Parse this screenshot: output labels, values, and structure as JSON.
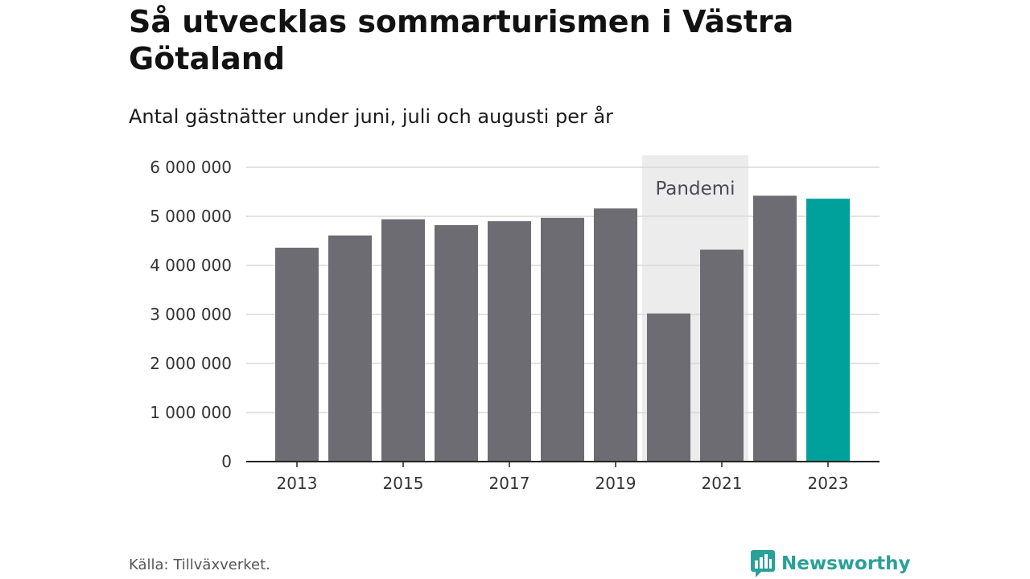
{
  "title": "Så utvecklas sommarturismen i Västra Götaland",
  "subtitle": "Antal gästnätter under juni, juli och augusti per år",
  "source": "Källa: Tillväxverket.",
  "brand": {
    "name": "Newsworthy",
    "icon": "newsworthy-logo-icon",
    "color": "#2aa198"
  },
  "colors": {
    "bar": "#6d6c72",
    "highlight": "#00a19a",
    "band": "#ececec",
    "grid": "#d9d9d9",
    "axis": "#222222"
  },
  "chart_data": {
    "type": "bar",
    "categories": [
      "2013",
      "2014",
      "2015",
      "2016",
      "2017",
      "2018",
      "2019",
      "2020",
      "2021",
      "2022",
      "2023"
    ],
    "values": [
      4360000,
      4610000,
      4940000,
      4820000,
      4900000,
      4970000,
      5160000,
      3020000,
      4320000,
      5420000,
      5360000
    ],
    "highlight_category": "2023",
    "ylim": [
      0,
      6000000
    ],
    "yticks": [
      0,
      1000000,
      2000000,
      3000000,
      4000000,
      5000000,
      6000000
    ],
    "ytick_labels": [
      "0",
      "1 000 000",
      "2 000 000",
      "3 000 000",
      "4 000 000",
      "5 000 000",
      "6 000 000"
    ],
    "xtick_labels": [
      "2013",
      "2015",
      "2017",
      "2019",
      "2021",
      "2023"
    ],
    "xlabel": "",
    "ylabel": "",
    "grid": true,
    "legend": false,
    "annotations": [
      {
        "label": "Pandemi",
        "from": "2020",
        "to": "2021"
      }
    ]
  }
}
